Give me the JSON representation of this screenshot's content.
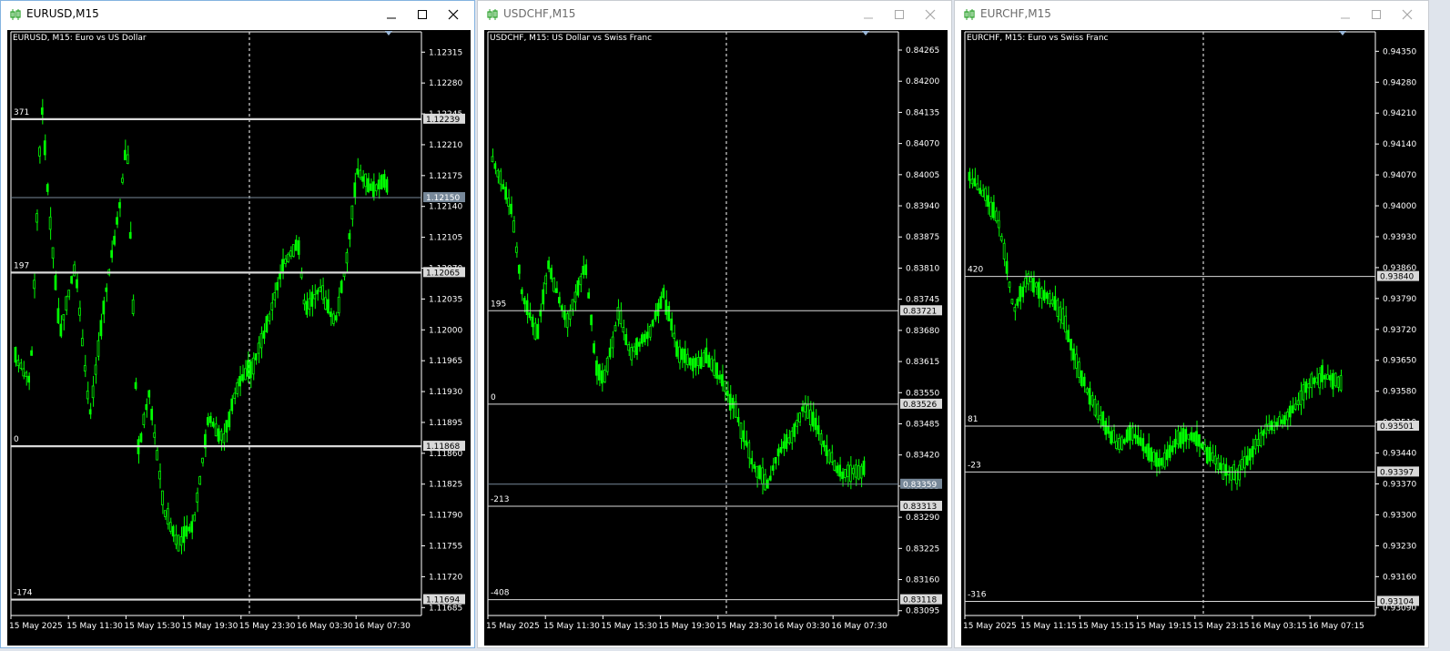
{
  "colors": {
    "background": "#000000",
    "candle": "#00ff00",
    "foreground": "#ffffff",
    "level_line": "#d9d9d9",
    "bid_line": "#778899"
  },
  "windows": [
    {
      "title": "EURUSD,M15",
      "chart_header": "EURUSD, M15:  Euro vs US Dollar",
      "active": true,
      "y_ticks": [
        "1.12315",
        "1.12280",
        "1.12245",
        "1.12210",
        "1.12175",
        "1.12140",
        "1.12105",
        "1.12070",
        "1.12035",
        "1.12000",
        "1.11965",
        "1.11930",
        "1.11895",
        "1.11860",
        "1.11825",
        "1.11790",
        "1.11755",
        "1.11720",
        "1.11685"
      ],
      "x_ticks": [
        "15 May 2025",
        "15 May 11:30",
        "15 May 15:30",
        "15 May 19:30",
        "15 May 23:30",
        "16 May 03:30",
        "16 May 07:30"
      ],
      "levels": [
        {
          "label": "371",
          "price": "1.12239",
          "value": 1.12239
        },
        {
          "label": "197",
          "price": "1.12065",
          "value": 1.12065
        },
        {
          "label": "0",
          "price": "1.11868",
          "value": 1.11868
        },
        {
          "label": "-174",
          "price": "1.11694",
          "value": 1.11694
        }
      ],
      "bid": {
        "price": "1.12150",
        "value": 1.1215
      },
      "y_range": [
        1.11676,
        1.12338
      ]
    },
    {
      "title": "USDCHF,M15",
      "chart_header": "USDCHF, M15:  US Dollar vs Swiss Franc",
      "active": false,
      "y_ticks": [
        "0.84265",
        "0.84200",
        "0.84135",
        "0.84070",
        "0.84005",
        "0.83940",
        "0.83875",
        "0.83810",
        "0.83745",
        "0.83680",
        "0.83615",
        "0.83550",
        "0.83485",
        "0.83420",
        "0.83355",
        "0.83290",
        "0.83225",
        "0.83160",
        "0.83095"
      ],
      "x_ticks": [
        "15 May 2025",
        "15 May 11:30",
        "15 May 15:30",
        "15 May 19:30",
        "15 May 23:30",
        "16 May 03:30",
        "16 May 07:30"
      ],
      "levels": [
        {
          "label": "195",
          "price": "0.83721",
          "value": 0.83721
        },
        {
          "label": "0",
          "price": "0.83526",
          "value": 0.83526
        },
        {
          "label": "-213",
          "price": "0.83313",
          "value": 0.83313
        },
        {
          "label": "-408",
          "price": "0.83118",
          "value": 0.83118
        }
      ],
      "bid": {
        "price": "0.83359",
        "value": 0.83359
      },
      "y_range": [
        0.83085,
        0.84303
      ]
    },
    {
      "title": "EURCHF,M15",
      "chart_header": "EURCHF, M15:  Euro vs Swiss Franc",
      "active": false,
      "y_ticks": [
        "0.94350",
        "0.94280",
        "0.94210",
        "0.94140",
        "0.94070",
        "0.94000",
        "0.93930",
        "0.93860",
        "0.93790",
        "0.93720",
        "0.93650",
        "0.93580",
        "0.93510",
        "0.93440",
        "0.93370",
        "0.93300",
        "0.93230",
        "0.93160",
        "0.93090"
      ],
      "x_ticks": [
        "15 May 2025",
        "15 May 11:15",
        "15 May 15:15",
        "15 May 19:15",
        "15 May 23:15",
        "16 May 03:15",
        "16 May 07:15"
      ],
      "levels": [
        {
          "label": "420",
          "price": "0.93840",
          "value": 0.9384
        },
        {
          "label": "81",
          "price": "0.93501",
          "value": 0.93501
        },
        {
          "label": "-23",
          "price": "0.93397",
          "value": 0.93397
        },
        {
          "label": "-316",
          "price": "0.93104",
          "value": 0.93104
        }
      ],
      "bid": {
        "price": "0.93501",
        "value": 0.93501
      },
      "y_range": [
        0.93072,
        0.94394
      ]
    }
  ]
}
